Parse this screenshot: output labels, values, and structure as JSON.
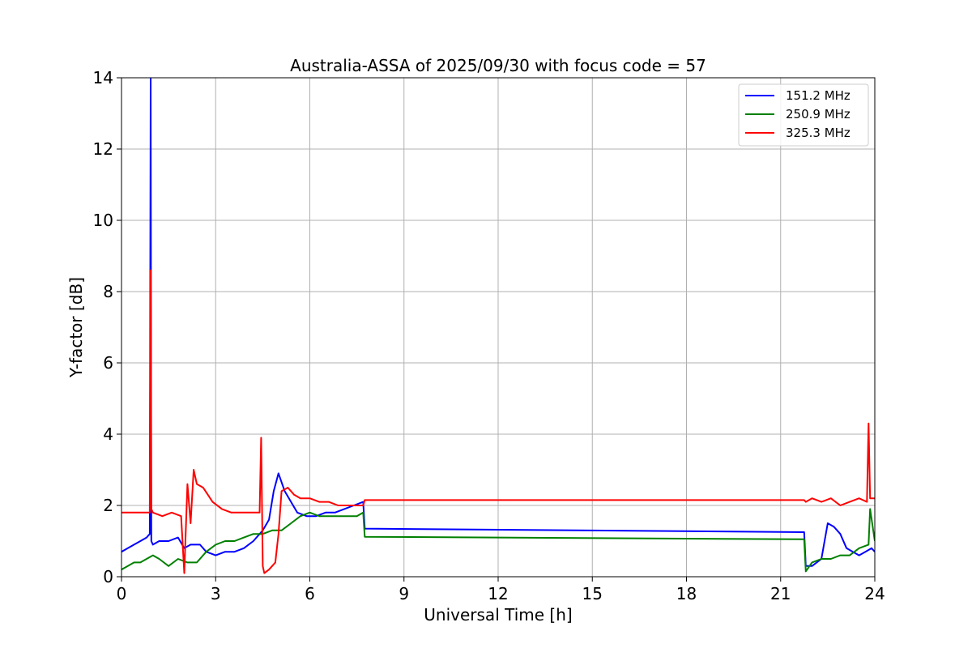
{
  "chart_data": {
    "type": "line",
    "title": "Australia-ASSA of 2025/09/30 with focus code = 57",
    "xlabel": "Universal Time [h]",
    "ylabel": "Y-factor [dB]",
    "xlim": [
      0,
      24
    ],
    "ylim": [
      0,
      14
    ],
    "xticks": [
      0,
      3,
      6,
      9,
      12,
      15,
      18,
      21,
      24
    ],
    "yticks": [
      0,
      2,
      4,
      6,
      8,
      10,
      12,
      14
    ],
    "grid": true,
    "legend_position": "top-right",
    "series": [
      {
        "name": "151.2 MHz",
        "color": "#0000ff",
        "x": [
          0.0,
          0.2,
          0.4,
          0.6,
          0.8,
          0.9,
          0.93,
          0.95,
          1.0,
          1.2,
          1.5,
          1.8,
          2.0,
          2.2,
          2.5,
          2.7,
          3.0,
          3.3,
          3.6,
          3.9,
          4.2,
          4.5,
          4.7,
          4.85,
          5.0,
          5.2,
          5.4,
          5.6,
          5.9,
          6.2,
          6.5,
          6.8,
          7.1,
          7.4,
          7.7,
          7.75,
          21.75,
          21.8,
          22.0,
          22.3,
          22.5,
          22.7,
          22.9,
          23.1,
          23.3,
          23.5,
          23.7,
          23.9,
          24.0
        ],
        "y": [
          0.7,
          0.8,
          0.9,
          1.0,
          1.1,
          1.2,
          14.0,
          1.0,
          0.9,
          1.0,
          1.0,
          1.1,
          0.8,
          0.9,
          0.9,
          0.7,
          0.6,
          0.7,
          0.7,
          0.8,
          1.0,
          1.3,
          1.6,
          2.4,
          2.9,
          2.4,
          2.1,
          1.8,
          1.7,
          1.7,
          1.8,
          1.8,
          1.9,
          2.0,
          2.1,
          1.35,
          1.25,
          0.3,
          0.3,
          0.5,
          1.5,
          1.4,
          1.2,
          0.8,
          0.7,
          0.6,
          0.7,
          0.8,
          0.7
        ]
      },
      {
        "name": "250.9 MHz",
        "color": "#008000",
        "x": [
          0.0,
          0.2,
          0.4,
          0.6,
          0.8,
          1.0,
          1.2,
          1.5,
          1.8,
          2.1,
          2.4,
          2.7,
          3.0,
          3.3,
          3.6,
          3.9,
          4.2,
          4.5,
          4.8,
          5.1,
          5.4,
          5.7,
          6.0,
          6.3,
          6.6,
          6.9,
          7.2,
          7.5,
          7.7,
          7.75,
          21.75,
          21.8,
          22.0,
          22.3,
          22.6,
          22.9,
          23.2,
          23.5,
          23.8,
          23.85,
          24.0
        ],
        "y": [
          0.2,
          0.3,
          0.4,
          0.4,
          0.5,
          0.6,
          0.5,
          0.3,
          0.5,
          0.4,
          0.4,
          0.7,
          0.9,
          1.0,
          1.0,
          1.1,
          1.2,
          1.2,
          1.3,
          1.3,
          1.5,
          1.7,
          1.8,
          1.7,
          1.7,
          1.7,
          1.7,
          1.7,
          1.8,
          1.12,
          1.05,
          0.15,
          0.4,
          0.5,
          0.5,
          0.6,
          0.6,
          0.8,
          0.9,
          1.9,
          1.0
        ]
      },
      {
        "name": "325.3 MHz",
        "color": "#ff0000",
        "x": [
          0.0,
          0.3,
          0.6,
          0.9,
          0.93,
          0.95,
          1.0,
          1.3,
          1.6,
          1.9,
          2.0,
          2.1,
          2.2,
          2.3,
          2.4,
          2.6,
          2.9,
          3.2,
          3.5,
          3.8,
          4.1,
          4.4,
          4.45,
          4.5,
          4.55,
          4.7,
          4.9,
          5.0,
          5.1,
          5.3,
          5.5,
          5.7,
          6.0,
          6.3,
          6.6,
          6.9,
          7.2,
          7.5,
          7.7,
          7.75,
          21.75,
          21.8,
          22.0,
          22.3,
          22.6,
          22.9,
          23.2,
          23.5,
          23.75,
          23.8,
          23.85,
          24.0
        ],
        "y": [
          1.8,
          1.8,
          1.8,
          1.8,
          8.6,
          1.9,
          1.8,
          1.7,
          1.8,
          1.7,
          0.1,
          2.6,
          1.5,
          3.0,
          2.6,
          2.5,
          2.1,
          1.9,
          1.8,
          1.8,
          1.8,
          1.8,
          3.9,
          0.3,
          0.1,
          0.2,
          0.4,
          1.2,
          2.4,
          2.5,
          2.3,
          2.2,
          2.2,
          2.1,
          2.1,
          2.0,
          2.0,
          2.0,
          2.0,
          2.15,
          2.15,
          2.1,
          2.2,
          2.1,
          2.2,
          2.0,
          2.1,
          2.2,
          2.1,
          4.3,
          2.2,
          2.2
        ]
      }
    ]
  }
}
